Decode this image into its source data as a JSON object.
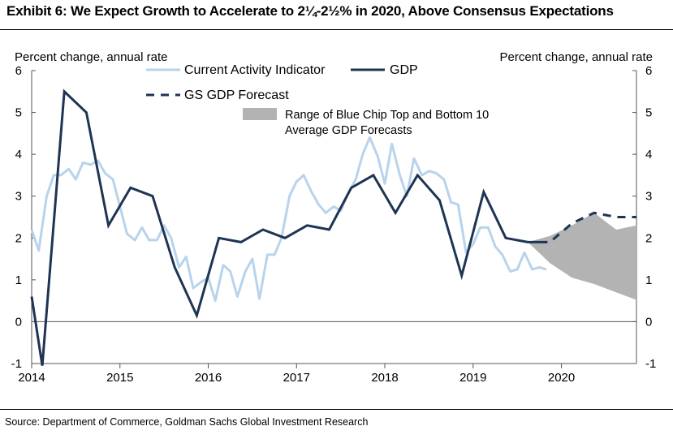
{
  "title": "Exhibit 6: We Expect Growth to Accelerate to 2¼-2½% in 2020, Above Consensus Expectations",
  "source": "Source: Department of Commerce, Goldman Sachs Global Investment Research",
  "chart_data": {
    "type": "line",
    "ylabel_left": "Percent change, annual rate",
    "ylabel_right": "Percent change, annual rate",
    "ylim": [
      -1,
      6
    ],
    "yticks": [
      "-1",
      "0",
      "1",
      "2",
      "3",
      "4",
      "5",
      "6"
    ],
    "xlim": [
      2014.0,
      2020.85
    ],
    "xticks": [
      "2014",
      "2015",
      "2016",
      "2017",
      "2018",
      "2019",
      "2020"
    ],
    "legend": {
      "cai": "Current Activity Indicator",
      "gdp": "GDP",
      "forecast": "GS GDP Forecast",
      "range": "Range of Blue Chip Top and Bottom 10",
      "range_line2": "Average GDP Forecasts"
    },
    "colors": {
      "cai": "#b8d3ec",
      "gdp": "#1e3454",
      "forecast": "#1e3454",
      "range": "#b3b3b3"
    },
    "series": [
      {
        "name": "Current Activity Indicator",
        "x": [
          2014.0,
          2014.08,
          2014.17,
          2014.25,
          2014.33,
          2014.42,
          2014.5,
          2014.58,
          2014.67,
          2014.75,
          2014.83,
          2014.92,
          2015.0,
          2015.08,
          2015.17,
          2015.25,
          2015.33,
          2015.42,
          2015.5,
          2015.58,
          2015.67,
          2015.75,
          2015.83,
          2015.92,
          2016.0,
          2016.08,
          2016.17,
          2016.25,
          2016.33,
          2016.42,
          2016.5,
          2016.58,
          2016.67,
          2016.75,
          2016.83,
          2016.92,
          2017.0,
          2017.08,
          2017.17,
          2017.25,
          2017.33,
          2017.42,
          2017.5,
          2017.58,
          2017.67,
          2017.75,
          2017.83,
          2017.92,
          2018.0,
          2018.08,
          2018.17,
          2018.25,
          2018.33,
          2018.42,
          2018.5,
          2018.58,
          2018.67,
          2018.75,
          2018.83,
          2018.92,
          2019.0,
          2019.08,
          2019.17,
          2019.25,
          2019.33,
          2019.42,
          2019.5,
          2019.58,
          2019.67,
          2019.75,
          2019.83
        ],
        "values": [
          2.2,
          1.7,
          3.0,
          3.5,
          3.5,
          3.65,
          3.4,
          3.8,
          3.75,
          3.85,
          3.55,
          3.4,
          2.75,
          2.1,
          1.95,
          2.25,
          1.95,
          1.95,
          2.3,
          2.0,
          1.3,
          1.55,
          0.8,
          0.95,
          1.05,
          0.5,
          1.35,
          1.2,
          0.6,
          1.2,
          1.5,
          0.55,
          1.6,
          1.6,
          2.0,
          3.0,
          3.35,
          3.5,
          3.1,
          2.8,
          2.6,
          2.75,
          2.65,
          3.05,
          3.4,
          4.0,
          4.4,
          3.95,
          3.3,
          4.25,
          3.5,
          3.0,
          3.9,
          3.5,
          3.6,
          3.55,
          3.4,
          2.85,
          2.8,
          1.65,
          1.85,
          2.25,
          2.25,
          1.8,
          1.6,
          1.2,
          1.25,
          1.65,
          1.25,
          1.3,
          1.25
        ]
      },
      {
        "name": "GDP",
        "x": [
          2014.0,
          2014.12,
          2014.37,
          2014.62,
          2014.87,
          2015.12,
          2015.37,
          2015.62,
          2015.87,
          2016.12,
          2016.37,
          2016.62,
          2016.87,
          2017.12,
          2017.37,
          2017.62,
          2017.87,
          2018.12,
          2018.37,
          2018.62,
          2018.87,
          2019.12,
          2019.37,
          2019.62,
          2019.75
        ],
        "values": [
          0.6,
          -1.05,
          5.5,
          5.0,
          2.3,
          3.2,
          3.0,
          1.3,
          0.15,
          2.0,
          1.9,
          2.2,
          2.0,
          2.3,
          2.2,
          3.2,
          3.5,
          2.6,
          3.5,
          2.9,
          1.1,
          3.1,
          2.0,
          1.9,
          1.9
        ]
      },
      {
        "name": "GS GDP Forecast",
        "x": [
          2019.75,
          2019.87,
          2020.12,
          2020.37,
          2020.62,
          2020.85
        ],
        "values": [
          1.9,
          1.9,
          2.35,
          2.6,
          2.5,
          2.5
        ]
      }
    ],
    "range_band": {
      "x": [
        2019.62,
        2019.87,
        2020.12,
        2020.37,
        2020.62,
        2020.85
      ],
      "upper": [
        1.9,
        2.05,
        2.3,
        2.6,
        2.2,
        2.3
      ],
      "lower": [
        1.9,
        1.4,
        1.05,
        0.9,
        0.7,
        0.52
      ]
    }
  }
}
